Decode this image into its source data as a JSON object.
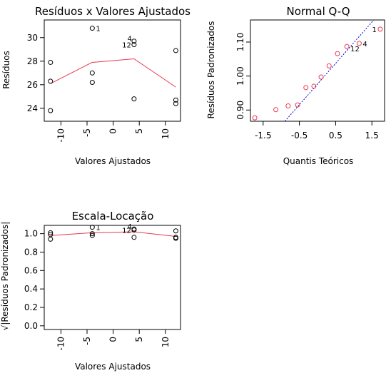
{
  "chart_data": [
    {
      "type": "scatter",
      "id": "residuals-vs-fitted",
      "title": "Resíduos x Valores Ajustados",
      "xlabel": "Valores Ajustados",
      "ylabel": "Resíduos",
      "xlim": [
        -13.2,
        12.9
      ],
      "ylim": [
        22.9,
        31.5
      ],
      "xticks": [
        -10,
        -5,
        0,
        5,
        10
      ],
      "yticks": [
        24,
        26,
        28,
        30
      ],
      "points": [
        {
          "x": -12,
          "y": 27.9
        },
        {
          "x": -12,
          "y": 26.3
        },
        {
          "x": -12,
          "y": 23.8
        },
        {
          "x": -4,
          "y": 30.8,
          "label": "1"
        },
        {
          "x": -4,
          "y": 27.0
        },
        {
          "x": -4,
          "y": 26.2
        },
        {
          "x": 4,
          "y": 29.7,
          "label": "4"
        },
        {
          "x": 4,
          "y": 29.4,
          "label": "12"
        },
        {
          "x": 4,
          "y": 24.8
        },
        {
          "x": 12,
          "y": 28.9
        },
        {
          "x": 12,
          "y": 24.7
        },
        {
          "x": 12,
          "y": 24.4
        }
      ],
      "smoother": {
        "color": "#e8384f",
        "x": [
          -12,
          -4,
          4,
          12
        ],
        "y": [
          26.1,
          27.9,
          28.2,
          25.8
        ]
      }
    },
    {
      "type": "scatter",
      "id": "normal-qq",
      "title": "Normal Q-Q",
      "xlabel": "Quantis Teóricos",
      "ylabel": "Resíduos Padronizados",
      "xlim": [
        -1.85,
        1.85
      ],
      "ylim": [
        0.867,
        1.165
      ],
      "xticks": [
        -1.5,
        -0.5,
        0.5,
        1.5
      ],
      "yticks": [
        0.9,
        1.0,
        1.1
      ],
      "ytick_labels": [
        "0.90",
        "1.00",
        "1.10"
      ],
      "point_color": "#e8384f",
      "points": [
        {
          "x": -1.73,
          "y": 0.877
        },
        {
          "x": -1.15,
          "y": 0.901
        },
        {
          "x": -0.81,
          "y": 0.912
        },
        {
          "x": -0.55,
          "y": 0.915
        },
        {
          "x": -0.32,
          "y": 0.966
        },
        {
          "x": -0.1,
          "y": 0.97
        },
        {
          "x": 0.1,
          "y": 0.997
        },
        {
          "x": 0.32,
          "y": 1.03
        },
        {
          "x": 0.55,
          "y": 1.066
        },
        {
          "x": 0.81,
          "y": 1.087,
          "label": "12"
        },
        {
          "x": 1.15,
          "y": 1.096,
          "label": "4"
        },
        {
          "x": 1.73,
          "y": 1.138,
          "label": "1"
        }
      ],
      "refline": {
        "color": "#0000cc",
        "style": "dotted",
        "x": [
          -0.9,
          1.55
        ],
        "y": [
          0.867,
          1.165
        ]
      }
    },
    {
      "type": "scatter",
      "id": "scale-location",
      "title": "Escala-Locação",
      "xlabel": "Valores Ajustados",
      "ylabel": "√|Resíduos Padronizados|",
      "xlim": [
        -13.2,
        12.9
      ],
      "ylim": [
        -0.04,
        1.09
      ],
      "xticks": [
        -10,
        -5,
        0,
        5,
        10
      ],
      "yticks": [
        0.0,
        0.2,
        0.4,
        0.6,
        0.8,
        1.0
      ],
      "ytick_labels": [
        "0.0",
        "0.2",
        "0.4",
        "0.6",
        "0.8",
        "1.0"
      ],
      "points": [
        {
          "x": -12,
          "y": 1.01
        },
        {
          "x": -12,
          "y": 0.99
        },
        {
          "x": -12,
          "y": 0.94
        },
        {
          "x": -4,
          "y": 1.07,
          "label": "1"
        },
        {
          "x": -4,
          "y": 1.0
        },
        {
          "x": -4,
          "y": 0.98
        },
        {
          "x": 4,
          "y": 1.05,
          "label": "4"
        },
        {
          "x": 4,
          "y": 1.04,
          "label": "12"
        },
        {
          "x": 4,
          "y": 0.96
        },
        {
          "x": 12,
          "y": 1.03
        },
        {
          "x": 12,
          "y": 0.96
        },
        {
          "x": 12,
          "y": 0.95
        }
      ],
      "smoother": {
        "color": "#e8384f",
        "x": [
          -12,
          -4,
          4,
          12
        ],
        "y": [
          0.98,
          1.01,
          1.02,
          0.97
        ]
      }
    }
  ]
}
